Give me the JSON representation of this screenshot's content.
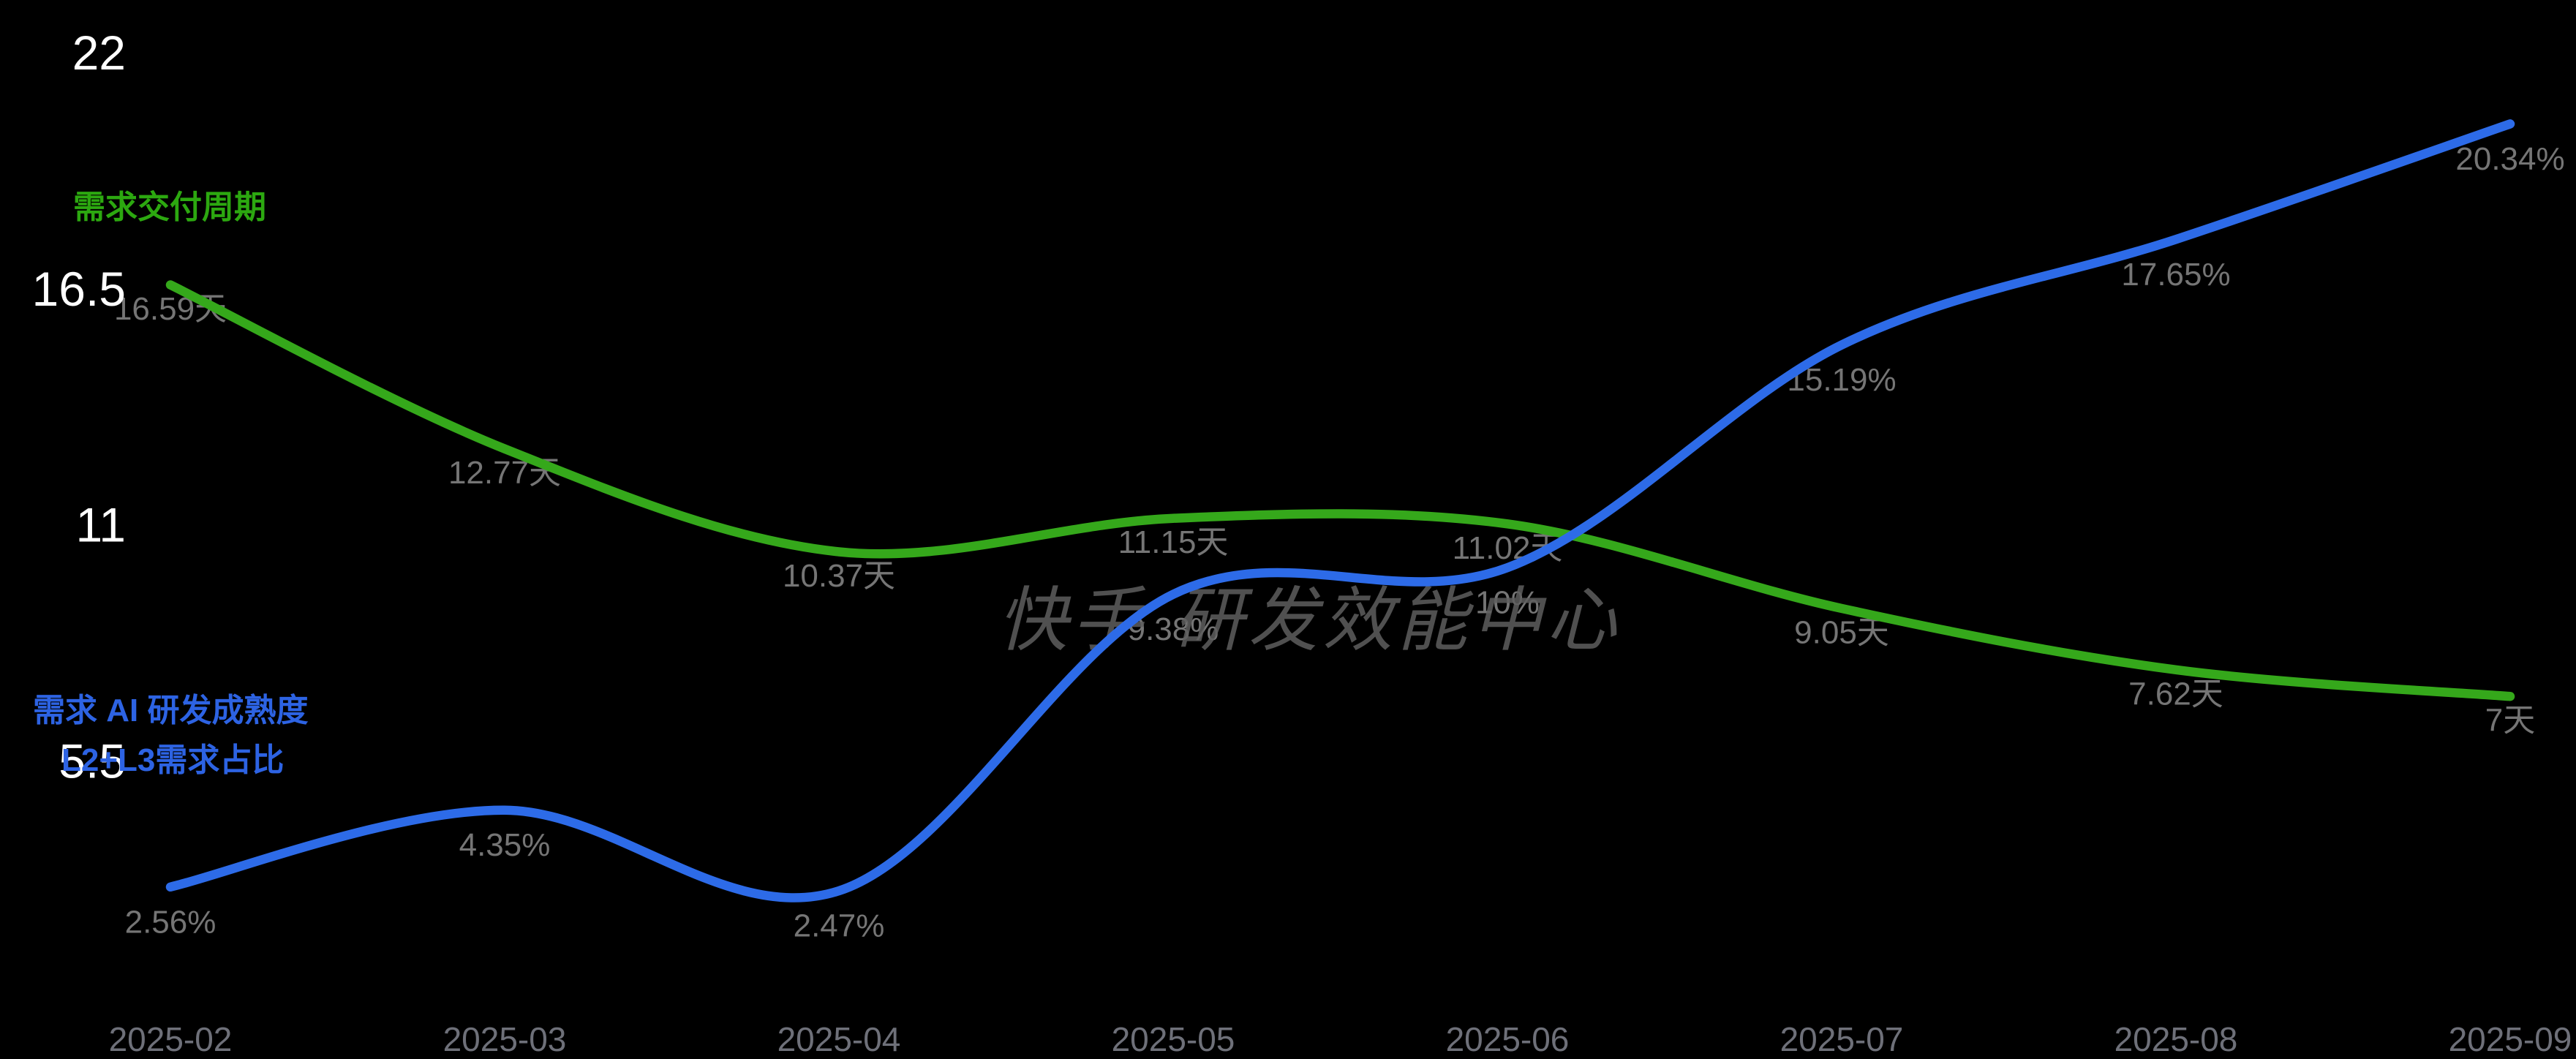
{
  "chart_data": {
    "type": "line",
    "title": "",
    "categories": [
      "2025-02",
      "2025-03",
      "2025-04",
      "2025-05",
      "2025-06",
      "2025-07",
      "2025-08",
      "2025-09"
    ],
    "series": [
      {
        "name": "需求交付周期",
        "unit": "天",
        "color": "#35A81B",
        "values": [
          16.59,
          12.77,
          10.37,
          11.15,
          11.02,
          9.05,
          7.62,
          7
        ],
        "labels": [
          "16.59天",
          "12.77天",
          "10.37天",
          "11.15天",
          "11.02天",
          "9.05天",
          "7.62天",
          "7天"
        ]
      },
      {
        "name": "L2+L3需求占比",
        "unit": "%",
        "color": "#2D6BE8",
        "values": [
          2.56,
          4.35,
          2.47,
          9.38,
          10,
          15.19,
          17.65,
          20.34
        ],
        "labels": [
          "2.56%",
          "4.35%",
          "2.47%",
          "9.38%",
          "10%",
          "15.19%",
          "17.65%",
          "20.34%"
        ]
      }
    ],
    "yticks": [
      {
        "v": 5.5,
        "label": "5.5"
      },
      {
        "v": 11,
        "label": "11"
      },
      {
        "v": 16.5,
        "label": "16.5"
      },
      {
        "v": 22,
        "label": "22"
      }
    ],
    "ylim": [
      0,
      22
    ],
    "grid": false,
    "smooth": true,
    "legend_position": "left",
    "background": "#000000"
  },
  "legend": {
    "delivery_cycle": "需求交付周期",
    "ai_maturity_line1": "需求 AI 研发成熟度",
    "ai_maturity_line2": "L2+L3需求占比"
  },
  "watermark": {
    "text": "快手 研发效能中心"
  },
  "colors": {
    "background": "#000000",
    "green_series": "#35A81B",
    "blue_series": "#2D6BE8",
    "green_legend_text": "#2CA810",
    "blue_legend_text": "#2D63E3",
    "y_tick_text": "#FFFFFF",
    "x_tick_text": "#6E7079",
    "data_label_text": "#757575",
    "watermark_text": "#5E5E5E"
  }
}
